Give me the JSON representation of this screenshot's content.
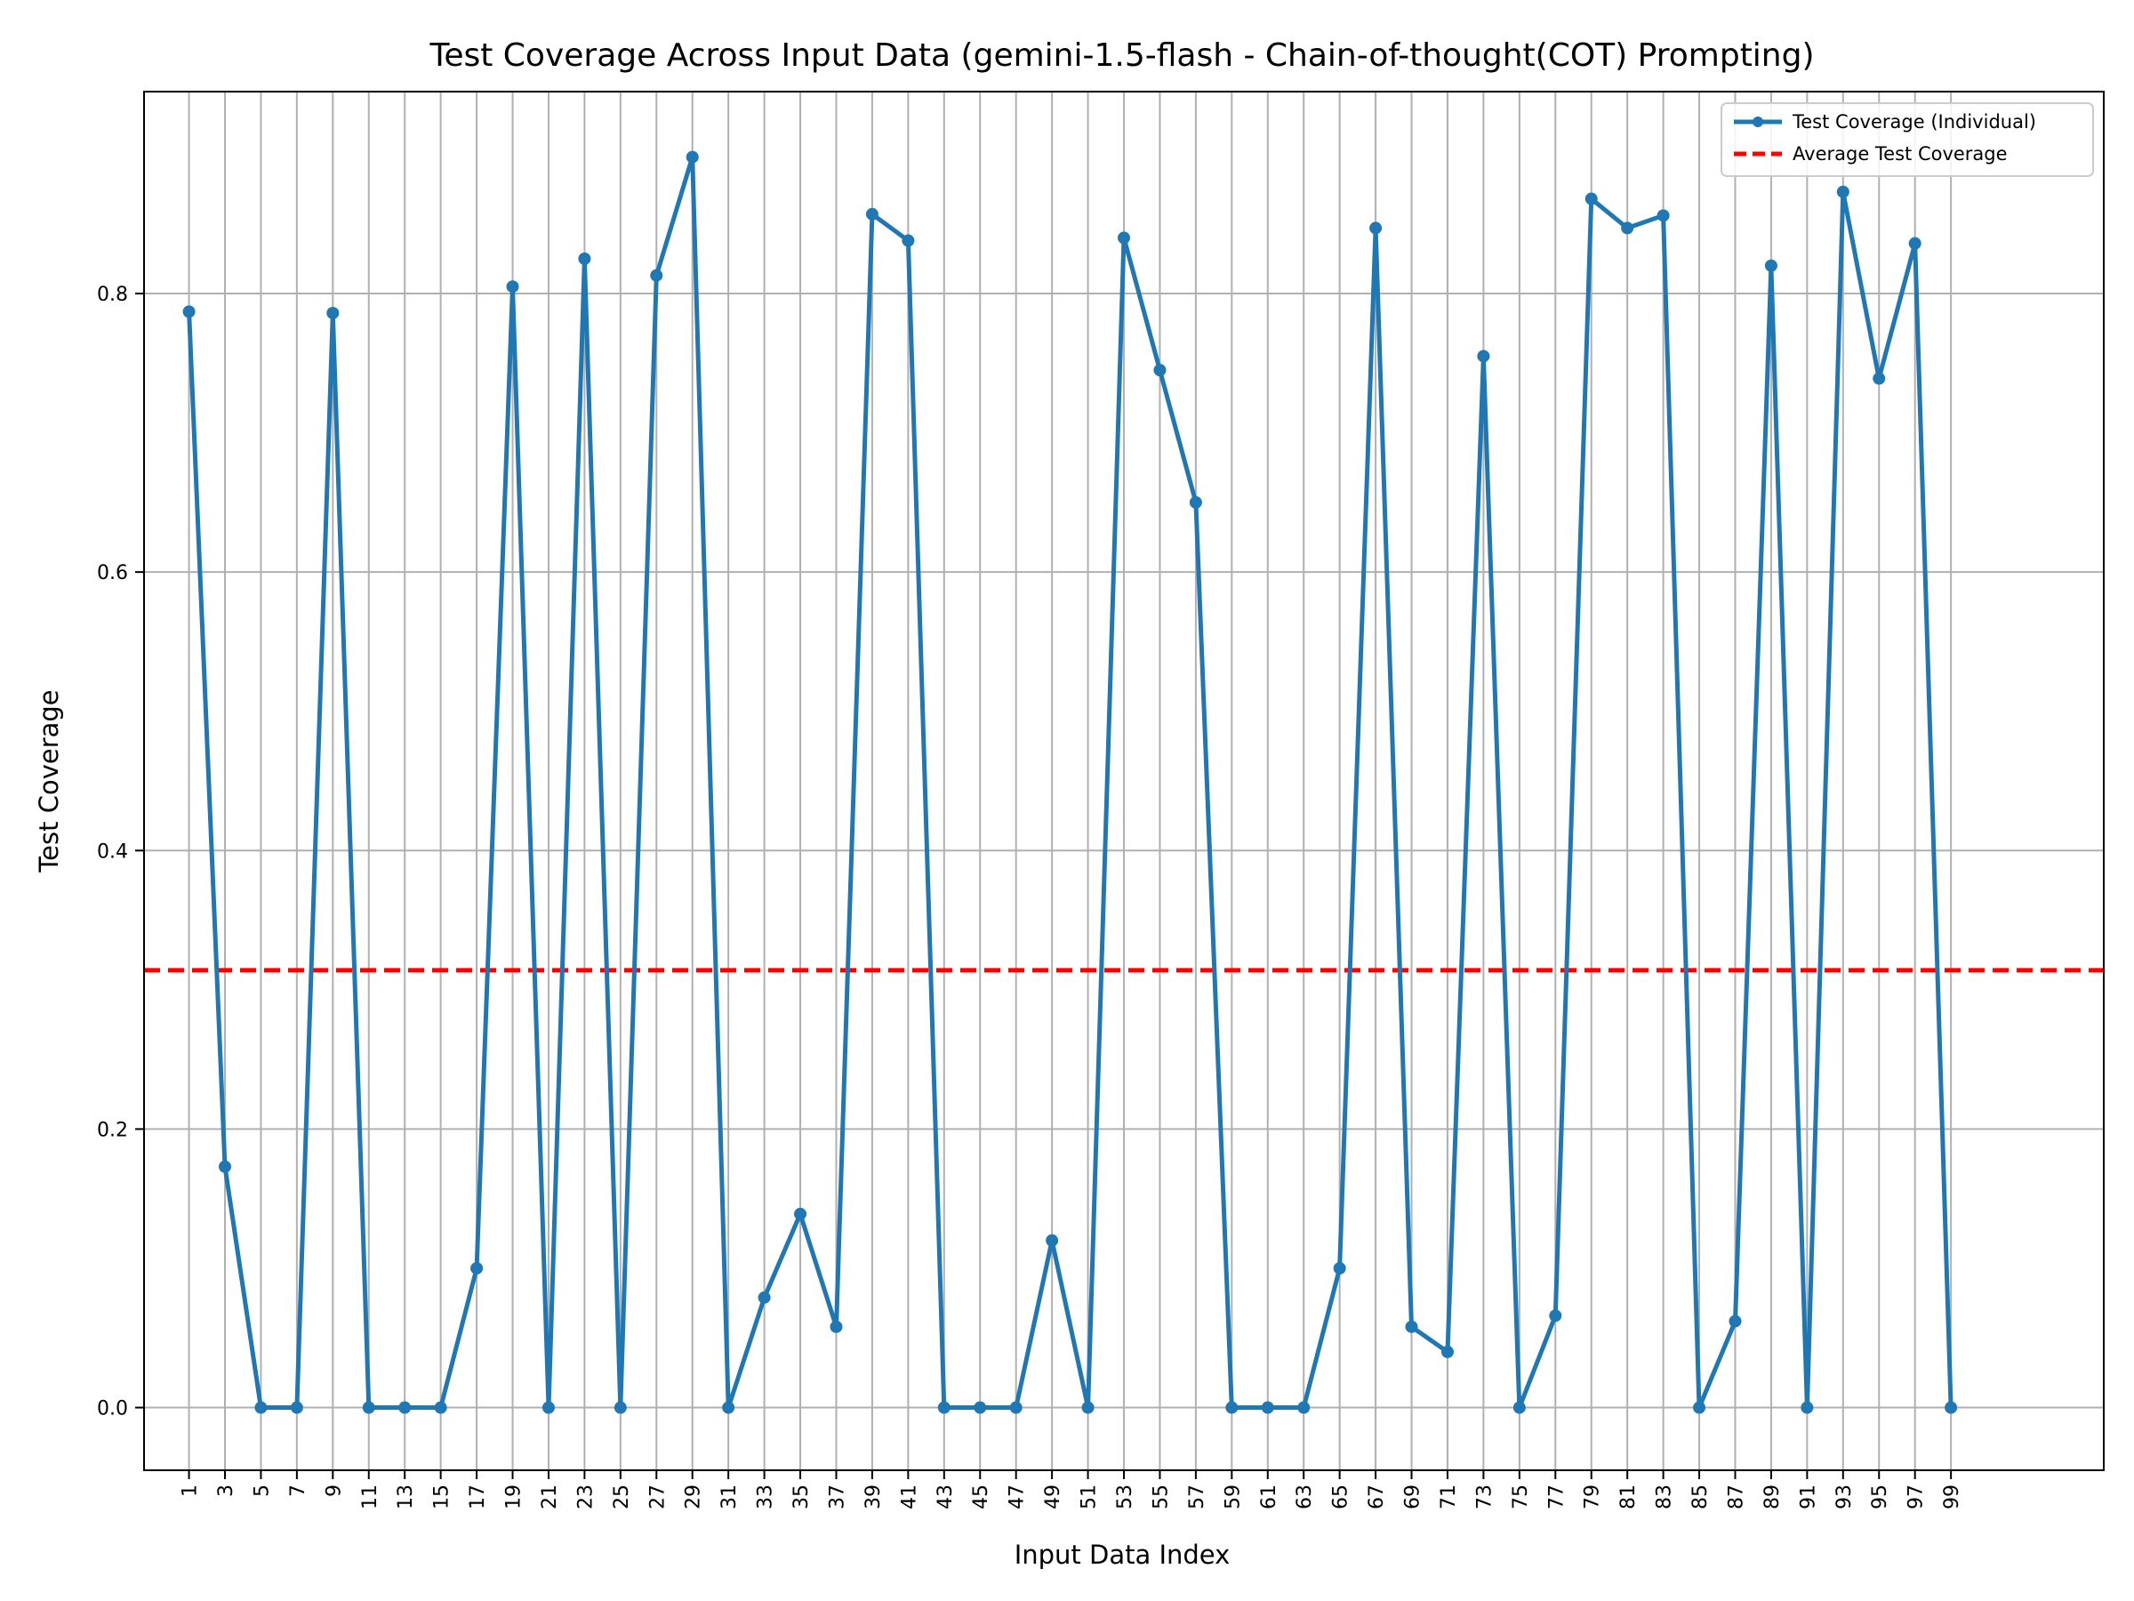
{
  "chart_data": {
    "type": "line",
    "title": "Test Coverage Across Input Data (gemini-1.5-flash - Chain-of-thought(COT) Prompting)",
    "xlabel": "Input Data Index",
    "ylabel": "Test Coverage",
    "xlim": [
      -1.5,
      107.5
    ],
    "ylim": [
      -0.045,
      0.945
    ],
    "x_ticks": [
      1,
      3,
      5,
      7,
      9,
      11,
      13,
      15,
      17,
      19,
      21,
      23,
      25,
      27,
      29,
      31,
      33,
      35,
      37,
      39,
      41,
      43,
      45,
      47,
      49,
      51,
      53,
      55,
      57,
      59,
      61,
      63,
      65,
      67,
      69,
      71,
      73,
      75,
      77,
      79,
      81,
      83,
      85,
      87,
      89,
      91,
      93,
      95,
      97,
      99
    ],
    "y_ticks": [
      0.0,
      0.2,
      0.4,
      0.6,
      0.8
    ],
    "y_tick_labels": [
      "0.0",
      "0.2",
      "0.4",
      "0.6",
      "0.8"
    ],
    "grid": true,
    "legend_position": "top-right",
    "series": [
      {
        "name": "Test Coverage (Individual)",
        "color": "#1f77b4",
        "style": "solid-with-markers",
        "x": [
          1,
          3,
          5,
          7,
          9,
          11,
          13,
          15,
          17,
          19,
          21,
          23,
          25,
          27,
          29,
          31,
          33,
          35,
          37,
          39,
          41,
          43,
          45,
          47,
          49,
          51,
          53,
          55,
          57,
          59,
          61,
          63,
          65,
          67,
          69,
          71,
          73,
          75,
          77,
          79,
          81,
          83,
          85,
          87,
          89,
          91,
          93,
          95,
          97,
          99
        ],
        "values": [
          0.787,
          0.173,
          0.0,
          0.0,
          0.786,
          0.0,
          0.0,
          0.0,
          0.1,
          0.805,
          0.0,
          0.825,
          0.0,
          0.813,
          0.898,
          0.0,
          0.079,
          0.139,
          0.058,
          0.857,
          0.838,
          0.0,
          0.0,
          0.0,
          0.12,
          0.0,
          0.84,
          0.745,
          0.65,
          0.0,
          0.0,
          0.0,
          0.1,
          0.847,
          0.058,
          0.04,
          0.755,
          0.0,
          0.066,
          0.868,
          0.847,
          0.856,
          0.0,
          0.062,
          0.82,
          0.0,
          0.873,
          0.739,
          0.836,
          0.0
        ]
      },
      {
        "name": "Average Test Coverage",
        "color": "#ff0000",
        "style": "dashed",
        "value": 0.314
      }
    ]
  }
}
